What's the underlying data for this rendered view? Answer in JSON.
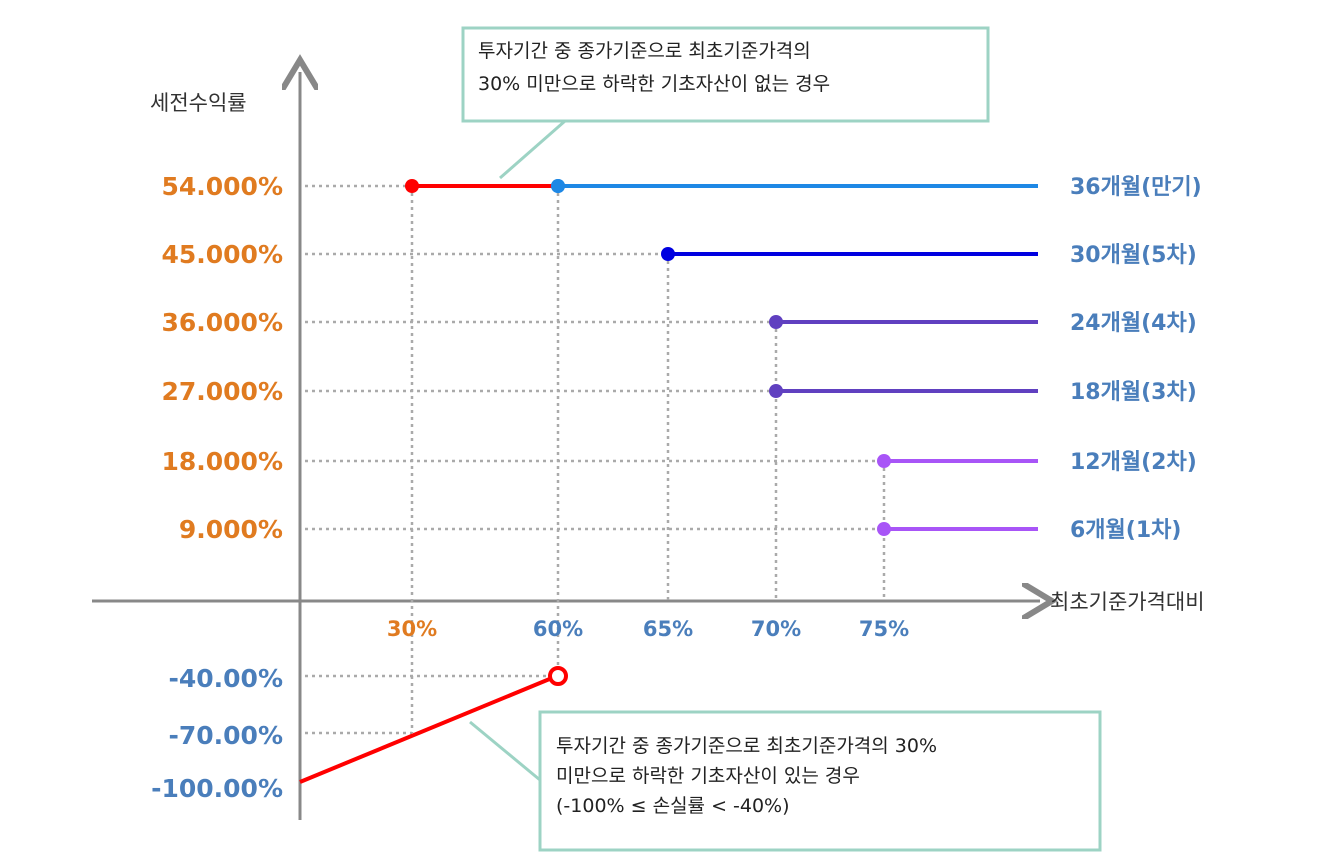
{
  "y_axis_label": "세전수익률",
  "x_axis_label": "최초기준가격대비",
  "levels": [
    {
      "label": "54.000%",
      "period": "36개월(만기)"
    },
    {
      "label": "45.000%",
      "period": "30개월(5차)"
    },
    {
      "label": "36.000%",
      "period": "24개월(4차)"
    },
    {
      "label": "27.000%",
      "period": "18개월(3차)"
    },
    {
      "label": "18.000%",
      "period": "12개월(2차)"
    },
    {
      "label": "9.000%",
      "period": "6개월(1차)"
    }
  ],
  "x_labels": [
    "30%",
    "60%",
    "65%",
    "70%",
    "75%"
  ],
  "loss_labels": [
    "-40.00%",
    "-70.00%",
    "-100.00%"
  ],
  "callout_top": [
    "투자기간 중 종가기준으로 최초기준가격의",
    "30% 미만으로 하락한 기초자산이 없는 경우"
  ],
  "callout_bottom": [
    "투자기간 중 종가기준으로 최초기준가격의 30%",
    "미만으로 하락한 기초자산이 있는 경우",
    "(-100% ≤ 손실률 < -40%)"
  ]
}
